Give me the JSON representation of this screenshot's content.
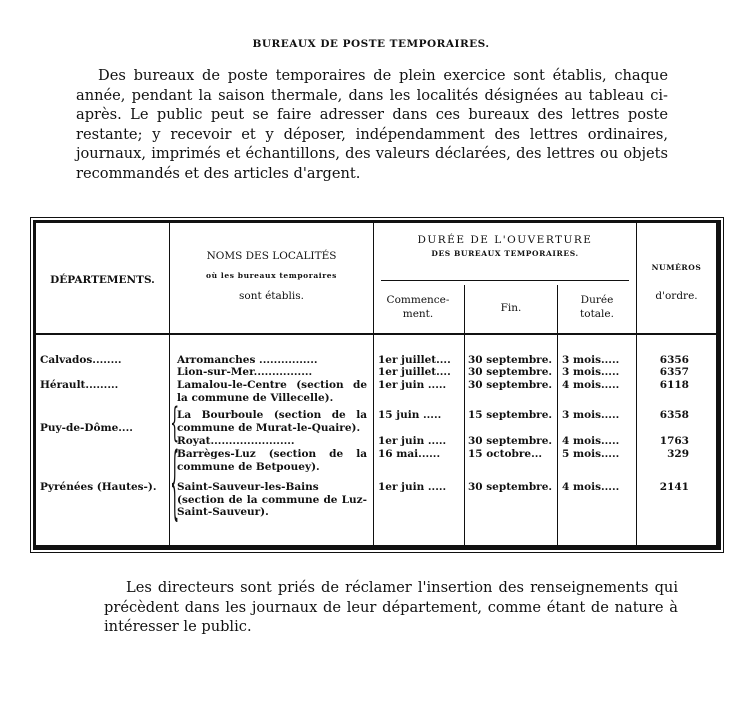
{
  "title": "BUREAUX DE POSTE TEMPORAIRES.",
  "intro": "Des bureaux de poste temporaires de plein exercice sont établis, chaque année, pendant la saison thermale, dans les localités désignées au tableau ci-après. Le public peut se faire adresser dans ces bureaux des lettres poste restante; y recevoir et y déposer, indépendamment des lettres ordinaires, journaux, imprimés et échantillons, des valeurs déclarées, des lettres ou objets recommandés et des articles d'argent.",
  "table": {
    "headers": {
      "departements": "DÉPARTEMENTS.",
      "noms_line1": "NOMS DES LOCALITÉS",
      "noms_line2": "où les bureaux temporaires",
      "noms_line3": "sont établis.",
      "duree_line1": "DURÉE DE L'OUVERTURE",
      "duree_line2": "des bureaux temporaires.",
      "commencement": "Commence-ment.",
      "fin": "Fin.",
      "duree_totale": "Durée totale.",
      "numeros_line1": "numéros",
      "numeros_line2": "d'ordre."
    },
    "departements": [
      "Calvados........",
      "Hérault.........",
      "Puy-de-Dôme....",
      "Pyrénées (Hautes-)."
    ],
    "rows": [
      {
        "localite": "Arromanches ................",
        "debut": "1er juillet....",
        "fin": "30 septembre.",
        "duree": "3 mois.....",
        "numero": "6356"
      },
      {
        "localite": "Lion-sur-Mer................",
        "debut": "1er juillet....",
        "fin": "30 septembre.",
        "duree": "3 mois.....",
        "numero": "6357"
      },
      {
        "localite": "Lamalou-le-Centre (section de la commune de Villecelle).",
        "debut": "1er juin .....",
        "fin": "30 septembre.",
        "duree": "4 mois.....",
        "numero": "6118"
      },
      {
        "localite": "La Bourboule (section de la commune de Murat-le-Quaire).",
        "debut": "15 juin .....",
        "fin": "15 septembre.",
        "duree": "3 mois.....",
        "numero": "6358"
      },
      {
        "localite": "Royat.......................",
        "debut": "1er juin .....",
        "fin": "30 septembre.",
        "duree": "4 mois.....",
        "numero": "1763"
      },
      {
        "localite": "Barrèges-Luz (section de la commune de Betpouey).",
        "debut": "16 mai......",
        "fin": "15 octobre...",
        "duree": "5 mois.....",
        "numero": "329"
      },
      {
        "localite": "Saint-Sauveur-les-Bains (section de la commune de Luz-Saint-Sauveur).",
        "debut": "1er juin .....",
        "fin": "30 septembre.",
        "duree": "4 mois.....",
        "numero": "2141"
      }
    ]
  },
  "closing": "Les directeurs sont priés de réclamer l'insertion des renseignements qui précèdent dans les journaux de leur département, comme étant de nature à intéresser le public."
}
